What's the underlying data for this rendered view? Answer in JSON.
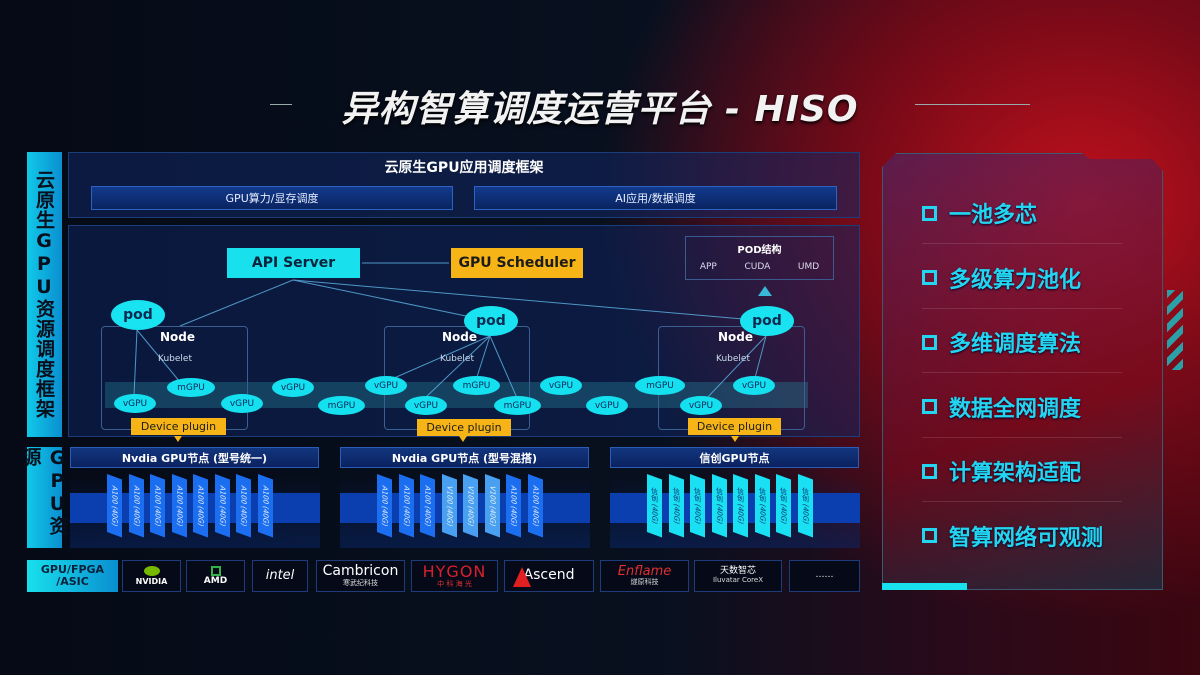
{
  "title": "异构智算调度运营平台 - HISO",
  "left_labels": {
    "framework": "云原生GPU资源调度框架",
    "resources": "GPU资源",
    "chips": "GPU/FPGA /ASIC"
  },
  "framework": {
    "title": "云原生GPU应用调度框架",
    "bars": [
      "GPU算力/显存调度",
      "AI应用/数据调度"
    ]
  },
  "diagram": {
    "api_server": "API Server",
    "gpu_scheduler": "GPU Scheduler",
    "pod_struct": {
      "title": "POD结构",
      "items": [
        "APP",
        "CUDA",
        "UMD"
      ]
    },
    "pod": "pod",
    "node": "Node",
    "kubelet": "Kubelet",
    "device_plugin": "Device plugin",
    "vgpu": "vGPU",
    "mgpu": "mGPU"
  },
  "gpu_nodes": [
    {
      "title": "Nvdia GPU节点 (型号统一)",
      "cards": [
        "A100 (40G)",
        "A100 (40G)",
        "A100 (40G)",
        "A100 (40G)",
        "A100 (40G)",
        "A100 (40G)",
        "A100 (40G)",
        "A100 (40G)"
      ]
    },
    {
      "title": "Nvdia GPU节点 (型号混搭)",
      "cards": [
        "A100 (40G)",
        "A100 (40G)",
        "A100 (40G)",
        "V100 (40G)",
        "V100 (40G)",
        "V100 (40G)",
        "A100 (40G)",
        "A100 (40G)"
      ]
    },
    {
      "title": "信创GPU节点",
      "cards": [
        "信创 (40G)",
        "信创 (40G)",
        "信创 (40G)",
        "信创 (40G)",
        "信创 (40G)",
        "信创 (40G)",
        "信创 (40G)",
        "信创 (40G)"
      ]
    }
  ],
  "vendors": [
    {
      "name": "NVIDIA"
    },
    {
      "name": "AMD"
    },
    {
      "name": "intel"
    },
    {
      "name": "Cambricon",
      "sub": "寒武纪科技"
    },
    {
      "name": "HYGON",
      "sub": "中 科 海 光"
    },
    {
      "name": "Ascend"
    },
    {
      "name": "Enflame",
      "sub": "燧原科技"
    },
    {
      "name": "天数智芯",
      "sub": "Iluvatar CoreX"
    },
    {
      "name": "……"
    }
  ],
  "features": [
    "一池多芯",
    "多级算力池化",
    "多维调度算法",
    "数据全网调度",
    "计算架构适配",
    "智算网络可观测"
  ],
  "colors": {
    "cyan": "#18e0ec",
    "yellow": "#f6b416",
    "blue": "#0b3fb0",
    "red": "#c0101c"
  }
}
